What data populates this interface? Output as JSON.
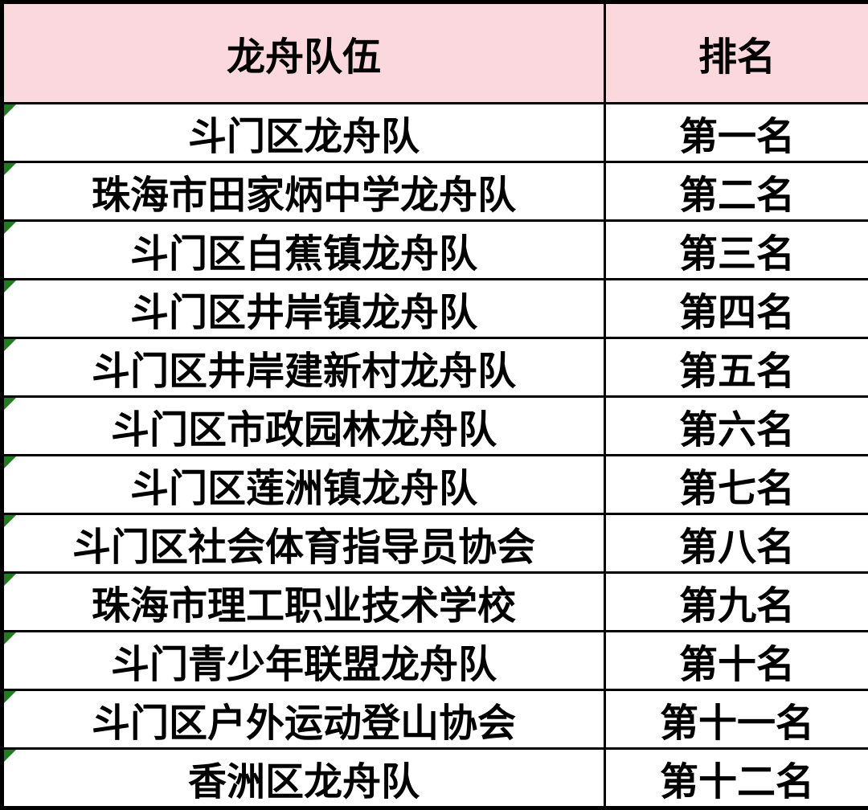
{
  "table": {
    "columns": [
      {
        "label": "龙舟队伍"
      },
      {
        "label": "排名"
      }
    ],
    "rows": [
      {
        "team": "斗门区龙舟队",
        "rank": "第一名"
      },
      {
        "team": "珠海市田家炳中学龙舟队",
        "rank": "第二名"
      },
      {
        "team": "斗门区白蕉镇龙舟队",
        "rank": "第三名"
      },
      {
        "team": "斗门区井岸镇龙舟队",
        "rank": "第四名"
      },
      {
        "team": "斗门区井岸建新村龙舟队",
        "rank": "第五名"
      },
      {
        "team": "斗门区市政园林龙舟队",
        "rank": "第六名"
      },
      {
        "team": "斗门区莲洲镇龙舟队",
        "rank": "第七名"
      },
      {
        "team": "斗门区社会体育指导员协会",
        "rank": "第八名"
      },
      {
        "team": "珠海市理工职业技术学校",
        "rank": "第九名"
      },
      {
        "team": "斗门青少年联盟龙舟队",
        "rank": "第十名"
      },
      {
        "team": "斗门区户外运动登山协会",
        "rank": "第十一名"
      },
      {
        "team": "香洲区龙舟队",
        "rank": "第十二名"
      }
    ],
    "colors": {
      "header_bg": "#FAD8DD",
      "border": "#000000",
      "error_marker_green": "#1E7E1E",
      "text": "#000000"
    }
  }
}
